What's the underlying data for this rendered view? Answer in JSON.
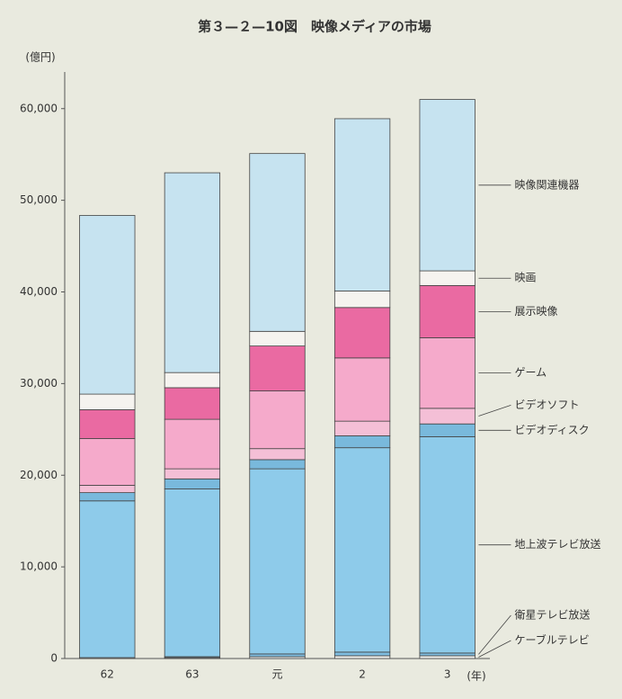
{
  "chart_data": {
    "type": "stacked-bar",
    "title": "第３—２—10図　映像メディアの市場",
    "y_label": "(億円)",
    "x_label": "(年)",
    "categories": [
      "62",
      "63",
      "元",
      "2",
      "3"
    ],
    "ylim": [
      0,
      64000
    ],
    "yticks": [
      0,
      {
        "value": 10000,
        "label": "10,000"
      },
      {
        "value": 20000,
        "label": "20,000"
      },
      {
        "value": 30000,
        "label": "30,000"
      },
      {
        "value": 40000,
        "label": "40,000"
      },
      {
        "value": 50000,
        "label": "50,000"
      },
      {
        "value": 60000,
        "label": "60,000"
      }
    ],
    "series": [
      {
        "name": "ケーブルテレビ",
        "color": "#f2f2ee",
        "values": [
          100,
          100,
          200,
          300,
          300
        ]
      },
      {
        "name": "衛星テレビ放送",
        "color": "#7fbde0",
        "values": [
          0,
          100,
          300,
          400,
          300
        ]
      },
      {
        "name": "地上波テレビ放送",
        "color": "#8ecbea",
        "values": [
          17100,
          18300,
          20200,
          22300,
          23600
        ]
      },
      {
        "name": "ビデオディスク",
        "color": "#79b9dc",
        "values": [
          900,
          1100,
          1000,
          1300,
          1400
        ]
      },
      {
        "name": "ビデオソフト",
        "color": "#f4bfd6",
        "values": [
          800,
          1100,
          1200,
          1600,
          1700
        ]
      },
      {
        "name": "ゲーム",
        "color": "#f5aacb",
        "values": [
          5100,
          5400,
          6300,
          6900,
          7700
        ]
      },
      {
        "name": "展示映像",
        "color": "#ea6aa2",
        "values": [
          3150,
          3450,
          4900,
          5500,
          5700
        ]
      },
      {
        "name": "映画",
        "color": "#f5f3ef",
        "values": [
          1700,
          1650,
          1600,
          1800,
          1600
        ]
      },
      {
        "name": "映像関連機器",
        "color": "#c6e3f0",
        "values": [
          19500,
          21800,
          19400,
          18800,
          18700
        ]
      }
    ]
  }
}
